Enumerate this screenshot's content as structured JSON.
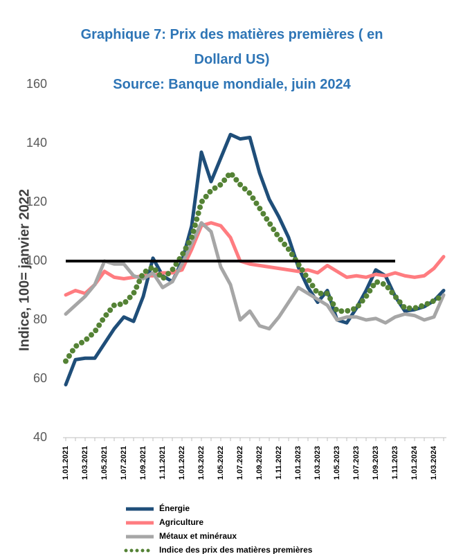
{
  "chart_data": {
    "type": "line",
    "title": "Graphique 7: Prix des matières premières ( en Dollard US)",
    "subtitle": "Source: Banque mondiale, juin 2024",
    "ylabel": "Indice, 100= janvier 2022",
    "categories": [
      "1.01.2021",
      null,
      "1.03.2021",
      null,
      "1.05.2021",
      null,
      "1.07.2021",
      null,
      "1.09.2021",
      null,
      "1.11.2021",
      null,
      "1.01.2022",
      null,
      "1.03.2022",
      null,
      "1.05.2022",
      null,
      "1.07.2022",
      null,
      "1.09.2022",
      null,
      "1.11.2022",
      null,
      "1.01.2023",
      null,
      "1.03.2023",
      null,
      "1.05.2023",
      null,
      "1.07.2023",
      null,
      "1.09.2023",
      null,
      "1.11.2023",
      null,
      "1.01.2024",
      null,
      "1.03.2024",
      null
    ],
    "ylim": [
      40,
      160
    ],
    "yticks": [
      40,
      60,
      80,
      100,
      120,
      140,
      160
    ],
    "reference_line": {
      "value": 100,
      "end": "1.11.2023",
      "color": "#000000"
    },
    "series": [
      {
        "name": "Énergie",
        "color": "#1f4e79",
        "style": "solid",
        "values": [
          58,
          66.5,
          67,
          67,
          72,
          77,
          81,
          79.5,
          88,
          101,
          95,
          93,
          100,
          112,
          137,
          127,
          135,
          143,
          141.5,
          142,
          130,
          121,
          115,
          108,
          98,
          91,
          86,
          90,
          80,
          79,
          84,
          90,
          97,
          95,
          88,
          83,
          83.5,
          84.5,
          86.5,
          90
        ]
      },
      {
        "name": "Agriculture",
        "color": "#ff7c80",
        "style": "solid",
        "values": [
          88.5,
          90,
          89,
          92,
          96.5,
          94.5,
          94,
          94.5,
          95,
          95,
          96,
          96,
          97,
          104,
          112,
          113,
          112,
          108,
          100,
          99,
          98.5,
          98,
          97.5,
          97,
          96.5,
          97,
          96,
          98.5,
          96.5,
          94.5,
          95,
          94.5,
          95.5,
          95,
          96,
          95,
          94.5,
          95,
          97.5,
          101.5
        ]
      },
      {
        "name": "Métaux et minéraux",
        "color": "#a6a6a6",
        "style": "solid",
        "values": [
          82,
          85,
          88,
          92,
          100,
          99,
          99,
          95,
          94,
          96,
          91,
          93,
          99,
          106,
          113,
          110,
          98,
          92,
          80,
          83,
          78,
          77,
          81,
          86,
          91,
          89,
          87,
          85,
          80,
          81,
          81,
          80,
          80.5,
          79,
          81,
          82,
          81.5,
          80,
          81,
          88.5
        ]
      },
      {
        "name": "Indice des prix des matières premières",
        "color": "#548235",
        "style": "dotted",
        "values": [
          66,
          71,
          73,
          76,
          81,
          85,
          85.5,
          89,
          96,
          98,
          94,
          97,
          102,
          108,
          120,
          124,
          126,
          130,
          126,
          123,
          118,
          113,
          108,
          104,
          99,
          94,
          89,
          89,
          83,
          83,
          84,
          88,
          93,
          92,
          88,
          84,
          84,
          85,
          86.5,
          88.5
        ]
      }
    ]
  }
}
